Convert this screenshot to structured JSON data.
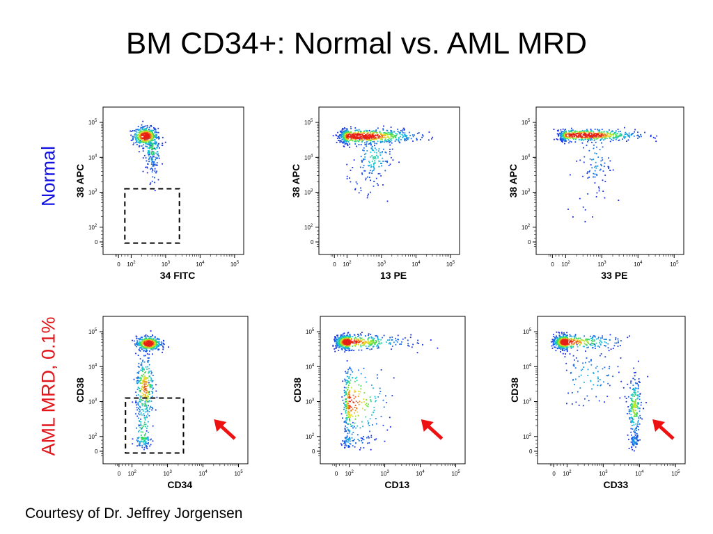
{
  "title": "BM CD34+: Normal vs. AML MRD",
  "row_labels": {
    "normal": "Normal",
    "aml": "AML MRD, 0.1%"
  },
  "footer": "Courtesy of Dr. Jeffrey Jorgensen",
  "colors": {
    "normal_label": "#1010e0",
    "aml_label": "#e0161b",
    "arrow": "#ee1111",
    "gate": "#000000"
  },
  "chart_data": [
    {
      "type": "scatter",
      "row": "normal",
      "col": 0,
      "xlabel": "34 FITC",
      "ylabel": "38 APC",
      "scale": "logicle",
      "x_ticks": [
        "0",
        "10^2",
        "10^3",
        "10^4",
        "10^5"
      ],
      "y_ticks": [
        "0",
        "10^2",
        "10^3",
        "10^4",
        "10^5"
      ],
      "clusters": [
        {
          "cx": 2.4,
          "cy": 4.62,
          "sx": 0.18,
          "sy": 0.13,
          "n": 420
        },
        {
          "cx": 2.6,
          "cy": 4.25,
          "sx": 0.12,
          "sy": 0.25,
          "n": 150
        },
        {
          "cx": 2.62,
          "cy": 3.7,
          "sx": 0.08,
          "sy": 0.35,
          "n": 40
        }
      ],
      "gate": {
        "x": [
          1.0,
          3.4
        ],
        "y": [
          -0.2,
          3.1
        ]
      },
      "arrow": false
    },
    {
      "type": "scatter",
      "row": "normal",
      "col": 1,
      "xlabel": "13 PE",
      "ylabel": "38 APC",
      "scale": "logicle",
      "x_ticks": [
        "0",
        "10^2",
        "10^3",
        "10^4",
        "10^5"
      ],
      "y_ticks": [
        "0",
        "10^2",
        "10^3",
        "10^4",
        "10^5"
      ],
      "clusters": [
        {
          "cx": 2.4,
          "cy": 4.62,
          "sx": 0.75,
          "sy": 0.1,
          "n": 700
        },
        {
          "cx": 2.75,
          "cy": 4.0,
          "sx": 0.25,
          "sy": 0.3,
          "n": 120
        },
        {
          "cx": 2.5,
          "cy": 3.4,
          "sx": 0.35,
          "sy": 0.35,
          "n": 30
        }
      ],
      "gate": null,
      "arrow": false
    },
    {
      "type": "scatter",
      "row": "normal",
      "col": 2,
      "xlabel": "33 PE",
      "ylabel": "38 APC",
      "scale": "logicle",
      "x_ticks": [
        "0",
        "10^2",
        "10^3",
        "10^4",
        "10^5"
      ],
      "y_ticks": [
        "0",
        "10^2",
        "10^3",
        "10^4",
        "10^5"
      ],
      "clusters": [
        {
          "cx": 2.5,
          "cy": 4.65,
          "sx": 0.7,
          "sy": 0.08,
          "n": 600
        },
        {
          "cx": 2.8,
          "cy": 3.9,
          "sx": 0.2,
          "sy": 0.4,
          "n": 70
        },
        {
          "cx": 2.6,
          "cy": 3.0,
          "sx": 0.3,
          "sy": 0.5,
          "n": 20
        }
      ],
      "gate": null,
      "arrow": false
    },
    {
      "type": "scatter",
      "row": "aml",
      "col": 0,
      "xlabel": "CD34",
      "ylabel": "CD38",
      "scale": "logicle",
      "x_ticks": [
        "0",
        "10^2",
        "10^3",
        "10^4",
        "10^5"
      ],
      "y_ticks": [
        "0",
        "10^2",
        "10^3",
        "10^4",
        "10^5"
      ],
      "clusters": [
        {
          "cx": 2.45,
          "cy": 4.68,
          "sx": 0.17,
          "sy": 0.1,
          "n": 450
        },
        {
          "cx": 2.35,
          "cy": 3.4,
          "sx": 0.13,
          "sy": 0.45,
          "n": 260
        },
        {
          "cx": 2.3,
          "cy": 2.0,
          "sx": 0.12,
          "sy": 0.8,
          "n": 150
        }
      ],
      "gate": {
        "x": [
          1.0,
          3.45
        ],
        "y": [
          -0.3,
          3.1
        ]
      },
      "arrow": true
    },
    {
      "type": "scatter",
      "row": "aml",
      "col": 1,
      "xlabel": "CD13",
      "ylabel": "CD38",
      "scale": "logicle",
      "x_ticks": [
        "0",
        "10^2",
        "10^3",
        "10^4",
        "10^5"
      ],
      "y_ticks": [
        "0",
        "10^2",
        "10^3",
        "10^4",
        "10^5"
      ],
      "clusters": [
        {
          "cx": 1.6,
          "cy": 4.72,
          "sx": 0.9,
          "sy": 0.1,
          "n": 650
        },
        {
          "cx": 2.0,
          "cy": 3.0,
          "sx": 0.5,
          "sy": 0.5,
          "n": 280
        },
        {
          "cx": 1.8,
          "cy": 1.6,
          "sx": 0.5,
          "sy": 0.6,
          "n": 80
        }
      ],
      "gate": null,
      "arrow": true
    },
    {
      "type": "scatter",
      "row": "aml",
      "col": 2,
      "xlabel": "CD33",
      "ylabel": "CD38",
      "scale": "logicle",
      "x_ticks": [
        "0",
        "10^2",
        "10^3",
        "10^4",
        "10^5"
      ],
      "y_ticks": [
        "0",
        "10^2",
        "10^3",
        "10^4",
        "10^5"
      ],
      "clusters": [
        {
          "cx": 1.6,
          "cy": 4.72,
          "sx": 0.85,
          "sy": 0.1,
          "n": 600
        },
        {
          "cx": 3.85,
          "cy": 2.85,
          "sx": 0.09,
          "sy": 0.4,
          "n": 200
        },
        {
          "cx": 3.85,
          "cy": 1.5,
          "sx": 0.07,
          "sy": 0.6,
          "n": 70
        },
        {
          "cx": 2.6,
          "cy": 3.7,
          "sx": 0.45,
          "sy": 0.4,
          "n": 90
        }
      ],
      "gate": null,
      "arrow": true
    }
  ]
}
